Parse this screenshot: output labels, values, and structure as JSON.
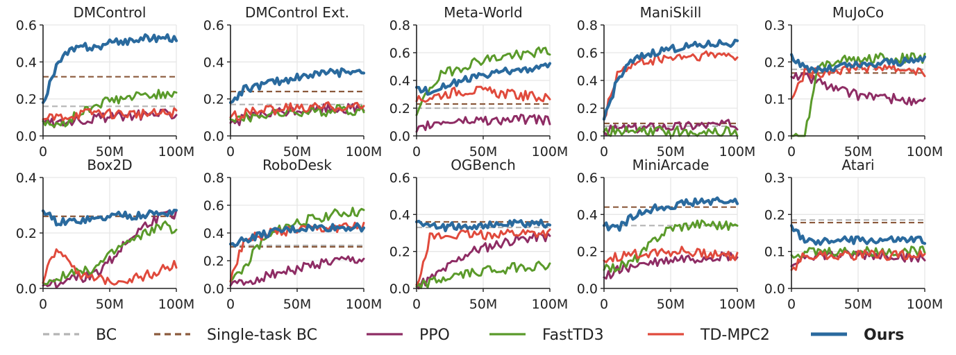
{
  "legend": [
    {
      "key": "bc",
      "label": "BC",
      "style": "dashed",
      "bold": false
    },
    {
      "key": "stbc",
      "label": "Single-task BC",
      "style": "dashed",
      "bold": false
    },
    {
      "key": "ppo",
      "label": "PPO",
      "style": "solid",
      "bold": false
    },
    {
      "key": "fasttd3",
      "label": "FastTD3",
      "style": "solid",
      "bold": false
    },
    {
      "key": "tdmpc2",
      "label": "TD-MPC2",
      "style": "solid",
      "bold": false
    },
    {
      "key": "ours",
      "label": "Ours",
      "style": "solid",
      "bold": true
    }
  ],
  "colors": {
    "bc": "#b4b4b4",
    "stbc": "#8b5a3c",
    "ppo": "#8e2c64",
    "fasttd3": "#5a9a2a",
    "tdmpc2": "#e04a3c",
    "ours": "#2a6a9e",
    "grid": "#e6e6e6",
    "axis": "#222222"
  },
  "x_tick_labels": [
    "0",
    "50M",
    "100M"
  ],
  "chart_data": [
    {
      "type": "line",
      "title": "DMControl",
      "xlabel": "",
      "ylabel": "",
      "xlim": [
        0,
        100
      ],
      "ylim": [
        0,
        0.6
      ],
      "yticks": [
        "0.0",
        "0.2",
        "0.4",
        "0.6"
      ],
      "baselines": {
        "bc": 0.16,
        "stbc": 0.32
      },
      "series": [
        {
          "key": "ppo",
          "name": "PPO",
          "values": [
            0.08,
            0.07,
            0.08,
            0.09,
            0.1,
            0.1,
            0.11,
            0.11,
            0.12,
            0.12,
            0.12
          ]
        },
        {
          "key": "fasttd3",
          "name": "FastTD3",
          "values": [
            0.08,
            0.05,
            0.09,
            0.13,
            0.17,
            0.19,
            0.2,
            0.21,
            0.22,
            0.23,
            0.24
          ]
        },
        {
          "key": "tdmpc2",
          "name": "TD-MPC2",
          "values": [
            0.09,
            0.1,
            0.11,
            0.12,
            0.13,
            0.12,
            0.12,
            0.12,
            0.12,
            0.12,
            0.13
          ]
        },
        {
          "key": "ours",
          "name": "Ours",
          "values": [
            0.18,
            0.38,
            0.46,
            0.48,
            0.48,
            0.5,
            0.51,
            0.52,
            0.53,
            0.53,
            0.53
          ]
        }
      ]
    },
    {
      "type": "line",
      "title": "DMControl Ext.",
      "xlabel": "",
      "ylabel": "",
      "xlim": [
        0,
        100
      ],
      "ylim": [
        0,
        0.6
      ],
      "yticks": [
        "0.0",
        "0.2",
        "0.4",
        "0.6"
      ],
      "baselines": {
        "bc": 0.17,
        "stbc": 0.24
      },
      "series": [
        {
          "key": "ppo",
          "name": "PPO",
          "values": [
            0.07,
            0.09,
            0.11,
            0.12,
            0.13,
            0.14,
            0.14,
            0.15,
            0.15,
            0.15,
            0.15
          ]
        },
        {
          "key": "fasttd3",
          "name": "FastTD3",
          "values": [
            0.09,
            0.1,
            0.11,
            0.12,
            0.12,
            0.13,
            0.13,
            0.13,
            0.14,
            0.14,
            0.14
          ]
        },
        {
          "key": "tdmpc2",
          "name": "TD-MPC2",
          "values": [
            0.1,
            0.12,
            0.13,
            0.14,
            0.15,
            0.15,
            0.15,
            0.16,
            0.16,
            0.16,
            0.16
          ]
        },
        {
          "key": "ours",
          "name": "Ours",
          "values": [
            0.18,
            0.25,
            0.27,
            0.29,
            0.3,
            0.32,
            0.33,
            0.34,
            0.34,
            0.35,
            0.36
          ]
        }
      ]
    },
    {
      "type": "line",
      "title": "Meta-World",
      "xlabel": "",
      "ylabel": "",
      "xlim": [
        0,
        100
      ],
      "ylim": [
        0,
        0.8
      ],
      "yticks": [
        "0.0",
        "0.2",
        "0.4",
        "0.6",
        "0.8"
      ],
      "baselines": {
        "bc": 0.2,
        "stbc": 0.23
      },
      "series": [
        {
          "key": "ppo",
          "name": "PPO",
          "values": [
            0.03,
            0.08,
            0.1,
            0.11,
            0.11,
            0.12,
            0.11,
            0.12,
            0.12,
            0.12,
            0.11
          ]
        },
        {
          "key": "fasttd3",
          "name": "FastTD3",
          "values": [
            0.15,
            0.35,
            0.45,
            0.48,
            0.52,
            0.55,
            0.56,
            0.58,
            0.59,
            0.6,
            0.61
          ]
        },
        {
          "key": "tdmpc2",
          "name": "TD-MPC2",
          "values": [
            0.25,
            0.28,
            0.3,
            0.32,
            0.33,
            0.32,
            0.31,
            0.3,
            0.29,
            0.28,
            0.27
          ]
        },
        {
          "key": "ours",
          "name": "Ours",
          "values": [
            0.35,
            0.32,
            0.36,
            0.39,
            0.41,
            0.43,
            0.45,
            0.47,
            0.48,
            0.49,
            0.5
          ]
        }
      ]
    },
    {
      "type": "line",
      "title": "ManiSkill",
      "xlabel": "",
      "ylabel": "",
      "xlim": [
        0,
        100
      ],
      "ylim": [
        0,
        0.8
      ],
      "yticks": [
        "0.0",
        "0.2",
        "0.4",
        "0.6",
        "0.8"
      ],
      "baselines": {
        "bc": 0.07,
        "stbc": 0.09
      },
      "series": [
        {
          "key": "ppo",
          "name": "PPO",
          "values": [
            0.03,
            0.05,
            0.06,
            0.06,
            0.07,
            0.07,
            0.07,
            0.08,
            0.08,
            0.08,
            0.08
          ]
        },
        {
          "key": "fasttd3",
          "name": "FastTD3",
          "values": [
            0.03,
            0.03,
            0.03,
            0.03,
            0.03,
            0.03,
            0.03,
            0.03,
            0.03,
            0.03,
            0.03
          ]
        },
        {
          "key": "tdmpc2",
          "name": "TD-MPC2",
          "values": [
            0.12,
            0.45,
            0.5,
            0.53,
            0.55,
            0.56,
            0.57,
            0.57,
            0.58,
            0.58,
            0.58
          ]
        },
        {
          "key": "ours",
          "name": "Ours",
          "values": [
            0.12,
            0.4,
            0.53,
            0.58,
            0.61,
            0.63,
            0.64,
            0.65,
            0.66,
            0.67,
            0.67
          ]
        }
      ]
    },
    {
      "type": "line",
      "title": "MuJoCo",
      "xlabel": "",
      "ylabel": "",
      "xlim": [
        0,
        100
      ],
      "ylim": [
        0,
        0.3
      ],
      "yticks": [
        "0.0",
        "0.1",
        "0.2",
        "0.3"
      ],
      "baselines": {
        "bc": 0.18,
        "stbc": 0.17
      },
      "series": [
        {
          "key": "ppo",
          "name": "PPO",
          "values": [
            0.16,
            0.16,
            0.15,
            0.13,
            0.12,
            0.11,
            0.11,
            0.1,
            0.1,
            0.09,
            0.09
          ]
        },
        {
          "key": "fasttd3",
          "name": "FastTD3",
          "values": [
            0.0,
            0.0,
            0.18,
            0.2,
            0.21,
            0.2,
            0.21,
            0.21,
            0.21,
            0.21,
            0.21
          ]
        },
        {
          "key": "tdmpc2",
          "name": "TD-MPC2",
          "values": [
            0.1,
            0.17,
            0.17,
            0.18,
            0.18,
            0.19,
            0.18,
            0.19,
            0.18,
            0.18,
            0.17
          ]
        },
        {
          "key": "ours",
          "name": "Ours",
          "values": [
            0.22,
            0.18,
            0.18,
            0.18,
            0.19,
            0.19,
            0.19,
            0.2,
            0.2,
            0.2,
            0.21
          ]
        }
      ]
    },
    {
      "type": "line",
      "title": "Box2D",
      "xlabel": "",
      "ylabel": "",
      "xlim": [
        0,
        100
      ],
      "ylim": [
        0,
        0.4
      ],
      "yticks": [
        "0.0",
        "0.2",
        "0.4"
      ],
      "baselines": {
        "bc": 0.26,
        "stbc": 0.26
      },
      "series": [
        {
          "key": "ppo",
          "name": "PPO",
          "values": [
            0.01,
            0.02,
            0.03,
            0.04,
            0.06,
            0.1,
            0.15,
            0.2,
            0.24,
            0.26,
            0.27
          ]
        },
        {
          "key": "fasttd3",
          "name": "FastTD3",
          "values": [
            0.02,
            0.04,
            0.05,
            0.06,
            0.08,
            0.12,
            0.16,
            0.18,
            0.21,
            0.23,
            0.2
          ]
        },
        {
          "key": "tdmpc2",
          "name": "TD-MPC2",
          "values": [
            0.02,
            0.15,
            0.1,
            0.04,
            0.03,
            0.03,
            0.03,
            0.04,
            0.05,
            0.07,
            0.09
          ]
        },
        {
          "key": "ours",
          "name": "Ours",
          "values": [
            0.28,
            0.24,
            0.24,
            0.25,
            0.25,
            0.26,
            0.27,
            0.26,
            0.27,
            0.27,
            0.28
          ]
        }
      ]
    },
    {
      "type": "line",
      "title": "RoboDesk",
      "xlabel": "",
      "ylabel": "",
      "xlim": [
        0,
        100
      ],
      "ylim": [
        0,
        0.8
      ],
      "yticks": [
        "0.0",
        "0.2",
        "0.4",
        "0.6",
        "0.8"
      ],
      "baselines": {
        "bc": 0.31,
        "stbc": 0.3
      },
      "series": [
        {
          "key": "ppo",
          "name": "PPO",
          "values": [
            0.02,
            0.04,
            0.07,
            0.1,
            0.12,
            0.14,
            0.16,
            0.18,
            0.19,
            0.2,
            0.2
          ]
        },
        {
          "key": "fasttd3",
          "name": "FastTD3",
          "values": [
            0.05,
            0.15,
            0.3,
            0.38,
            0.44,
            0.48,
            0.5,
            0.52,
            0.54,
            0.55,
            0.55
          ]
        },
        {
          "key": "tdmpc2",
          "name": "TD-MPC2",
          "values": [
            0.05,
            0.35,
            0.38,
            0.4,
            0.41,
            0.42,
            0.43,
            0.43,
            0.44,
            0.44,
            0.44
          ]
        },
        {
          "key": "ours",
          "name": "Ours",
          "values": [
            0.32,
            0.35,
            0.38,
            0.4,
            0.42,
            0.43,
            0.44,
            0.44,
            0.44,
            0.44,
            0.44
          ]
        }
      ]
    },
    {
      "type": "line",
      "title": "OGBench",
      "xlabel": "",
      "ylabel": "",
      "xlim": [
        0,
        100
      ],
      "ylim": [
        0,
        0.6
      ],
      "yticks": [
        "0.0",
        "0.2",
        "0.4",
        "0.6"
      ],
      "baselines": {
        "bc": 0.33,
        "stbc": 0.36
      },
      "series": [
        {
          "key": "ppo",
          "name": "PPO",
          "values": [
            0.02,
            0.05,
            0.1,
            0.15,
            0.2,
            0.22,
            0.24,
            0.26,
            0.27,
            0.28,
            0.28
          ]
        },
        {
          "key": "fasttd3",
          "name": "FastTD3",
          "values": [
            0.01,
            0.03,
            0.05,
            0.07,
            0.08,
            0.1,
            0.1,
            0.11,
            0.12,
            0.12,
            0.13
          ]
        },
        {
          "key": "tdmpc2",
          "name": "TD-MPC2",
          "values": [
            0.02,
            0.28,
            0.28,
            0.29,
            0.29,
            0.29,
            0.3,
            0.3,
            0.3,
            0.3,
            0.3
          ]
        },
        {
          "key": "ours",
          "name": "Ours",
          "values": [
            0.36,
            0.33,
            0.33,
            0.34,
            0.34,
            0.34,
            0.34,
            0.35,
            0.35,
            0.35,
            0.35
          ]
        }
      ]
    },
    {
      "type": "line",
      "title": "MiniArcade",
      "xlabel": "",
      "ylabel": "",
      "xlim": [
        0,
        100
      ],
      "ylim": [
        0,
        0.6
      ],
      "yticks": [
        "0.0",
        "0.2",
        "0.4",
        "0.6"
      ],
      "baselines": {
        "bc": 0.34,
        "stbc": 0.44
      },
      "series": [
        {
          "key": "ppo",
          "name": "PPO",
          "values": [
            0.06,
            0.1,
            0.12,
            0.13,
            0.14,
            0.15,
            0.16,
            0.16,
            0.17,
            0.17,
            0.17
          ]
        },
        {
          "key": "fasttd3",
          "name": "FastTD3",
          "values": [
            0.1,
            0.12,
            0.14,
            0.2,
            0.28,
            0.33,
            0.34,
            0.35,
            0.35,
            0.34,
            0.34
          ]
        },
        {
          "key": "tdmpc2",
          "name": "TD-MPC2",
          "values": [
            0.15,
            0.17,
            0.18,
            0.19,
            0.2,
            0.2,
            0.2,
            0.19,
            0.19,
            0.18,
            0.18
          ]
        },
        {
          "key": "ours",
          "name": "Ours",
          "values": [
            0.34,
            0.32,
            0.38,
            0.42,
            0.44,
            0.45,
            0.46,
            0.47,
            0.47,
            0.47,
            0.47
          ]
        }
      ]
    },
    {
      "type": "line",
      "title": "Atari",
      "xlabel": "",
      "ylabel": "",
      "xlim": [
        0,
        100
      ],
      "ylim": [
        0,
        0.3
      ],
      "yticks": [
        "0.0",
        "0.1",
        "0.2",
        "0.3"
      ],
      "baselines": {
        "bc": 0.185,
        "stbc": 0.178
      },
      "series": [
        {
          "key": "ppo",
          "name": "PPO",
          "values": [
            0.06,
            0.09,
            0.09,
            0.09,
            0.09,
            0.09,
            0.09,
            0.09,
            0.09,
            0.08,
            0.08
          ]
        },
        {
          "key": "fasttd3",
          "name": "FastTD3",
          "values": [
            0.09,
            0.1,
            0.1,
            0.1,
            0.1,
            0.1,
            0.1,
            0.1,
            0.1,
            0.1,
            0.1
          ]
        },
        {
          "key": "tdmpc2",
          "name": "TD-MPC2",
          "values": [
            0.05,
            0.09,
            0.09,
            0.09,
            0.09,
            0.09,
            0.09,
            0.09,
            0.09,
            0.09,
            0.09
          ]
        },
        {
          "key": "ours",
          "name": "Ours",
          "values": [
            0.17,
            0.13,
            0.12,
            0.13,
            0.13,
            0.13,
            0.13,
            0.13,
            0.13,
            0.13,
            0.13
          ]
        }
      ]
    }
  ]
}
